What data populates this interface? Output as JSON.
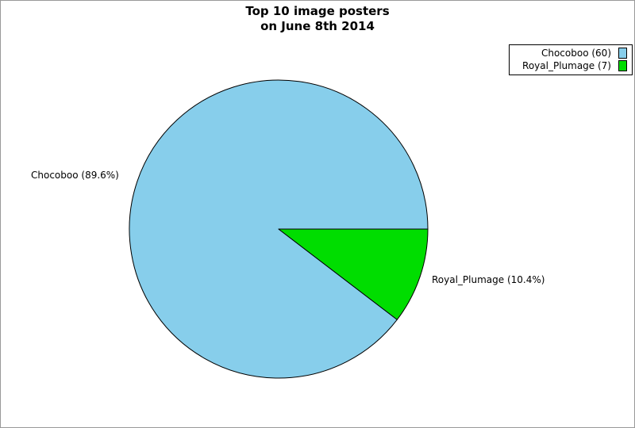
{
  "page": {
    "background": "#ffffff",
    "frame_border_color": "#999999"
  },
  "chart_data": {
    "type": "pie",
    "title": "Top 10 image posters",
    "subtitle": "on June 8th 2014",
    "legend_position": "top-right",
    "start_angle_deg": 0,
    "direction": "counterclockwise",
    "stroke_color": "#000000",
    "slices": [
      {
        "name": "Chocoboo",
        "count": 60,
        "pct": 89.6,
        "color": "#87CEEB",
        "label": "Chocoboo (89.6%)",
        "legend_label": "Chocoboo (60)"
      },
      {
        "name": "Royal_Plumage",
        "count": 7,
        "pct": 10.4,
        "color": "#00DD00",
        "label": "Royal_Plumage (10.4%)",
        "legend_label": "Royal_Plumage (7)"
      }
    ]
  }
}
